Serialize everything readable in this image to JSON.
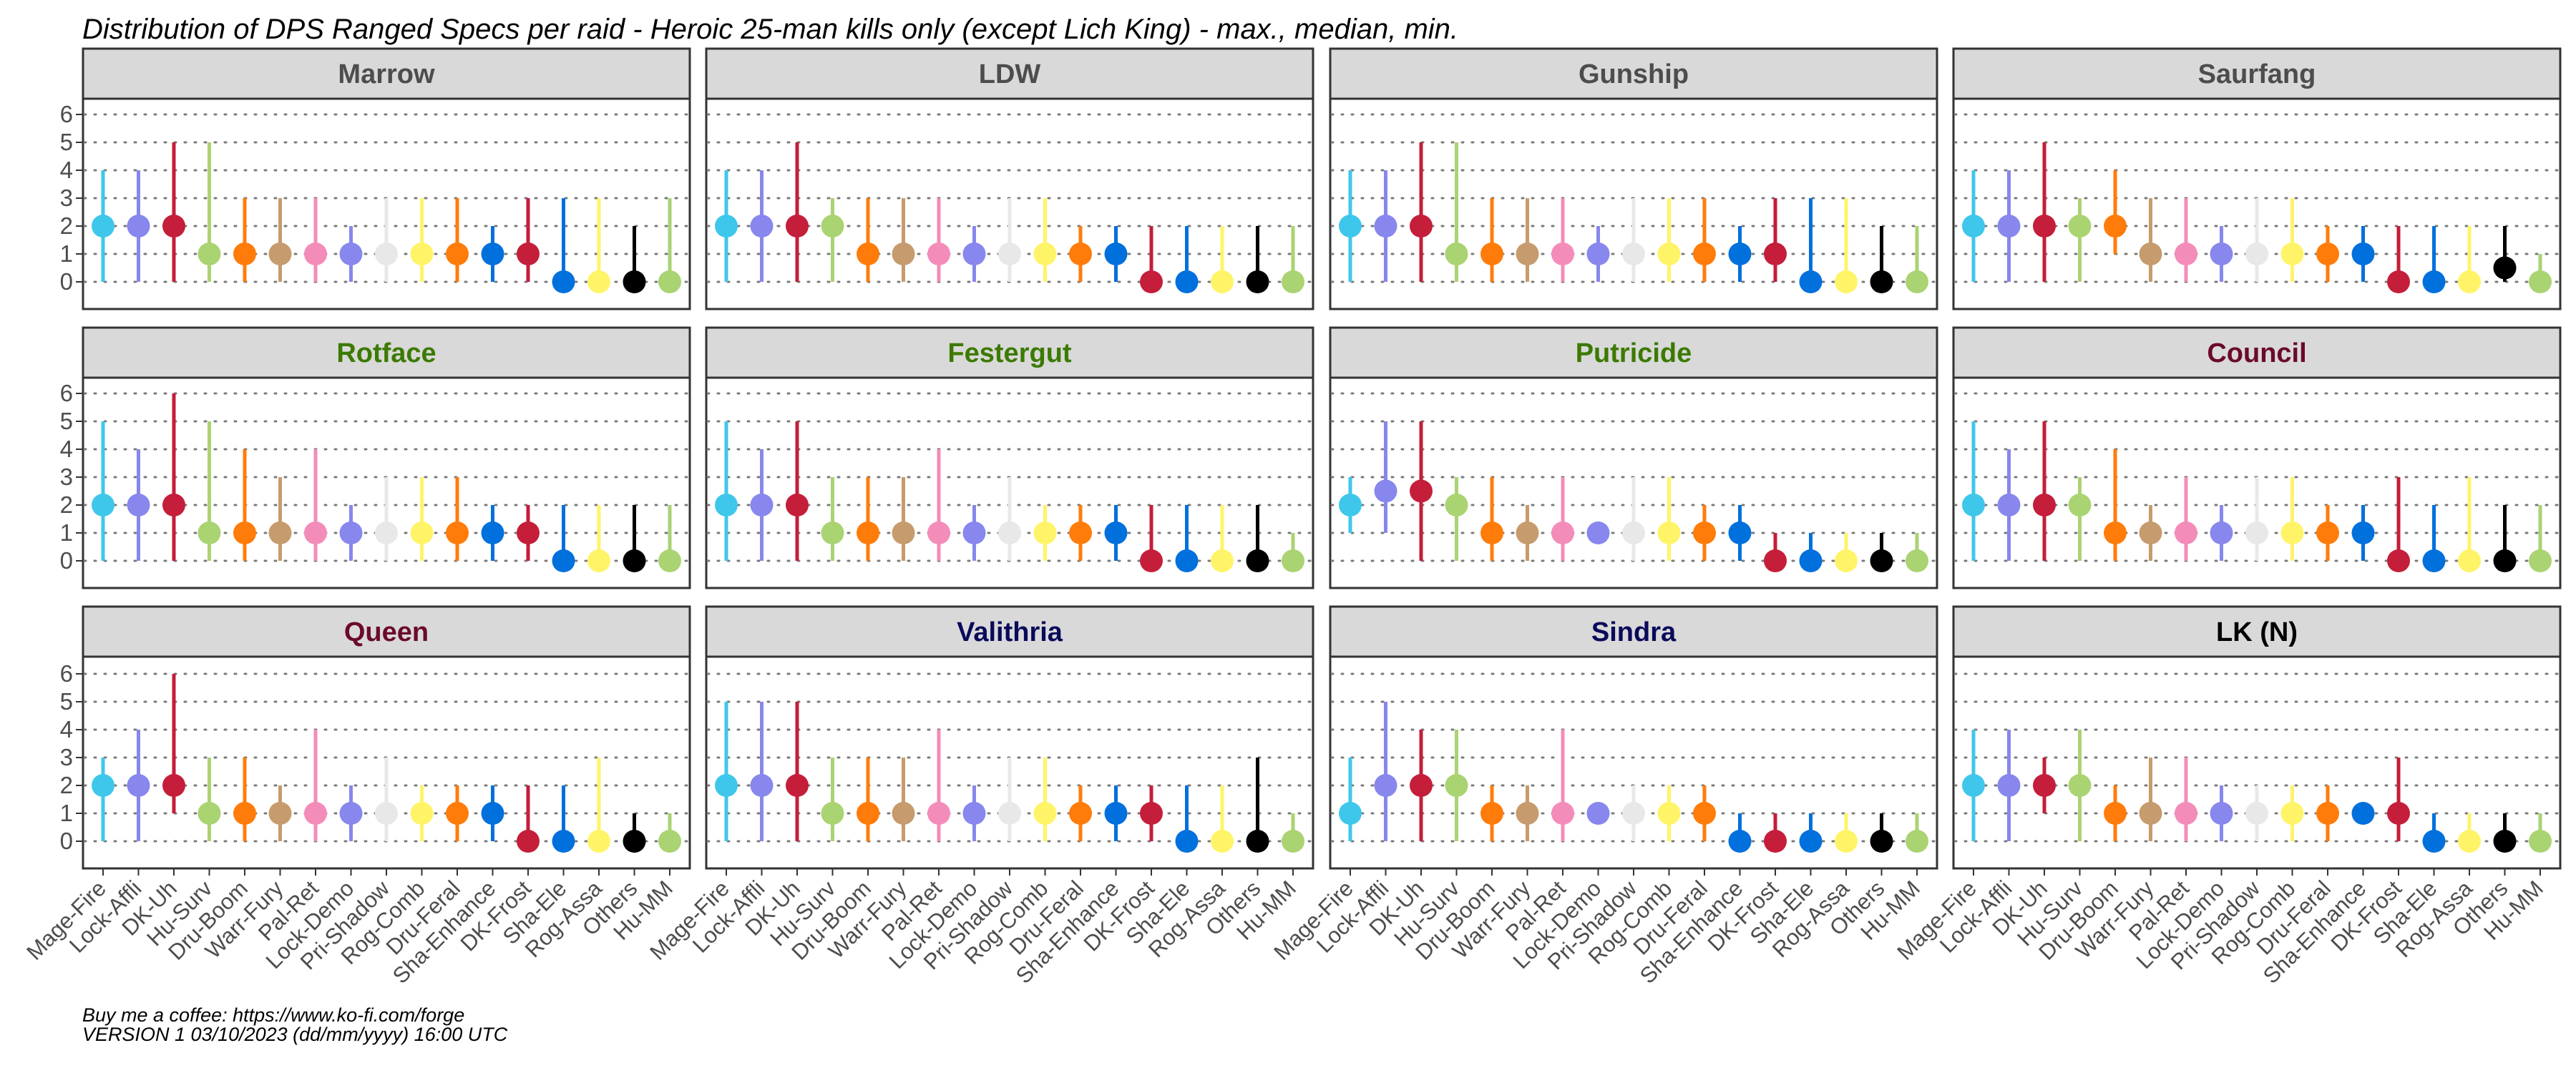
{
  "chart_data": {
    "type": "pointrange",
    "title": "Distribution of DPS Ranged Specs per raid - Heroic 25-man kills only (except Lich King) - max., median, min.",
    "footer": [
      "Buy me a coffee: https://www.ko-fi.com/forge",
      "VERSION 1 03/10/2023 (dd/mm/yyyy) 16:00 UTC"
    ],
    "ylim": [
      0,
      6
    ],
    "yticks": [
      0,
      1,
      2,
      3,
      4,
      5,
      6
    ],
    "grid": true,
    "categories": [
      "Mage-Fire",
      "Lock-Affli",
      "DK-Uh",
      "Hu-Surv",
      "Dru-Boom",
      "Warr-Fury",
      "Pal-Ret",
      "Lock-Demo",
      "Pri-Shadow",
      "Rog-Comb",
      "Dru-Feral",
      "Sha-Enhance",
      "DK-Frost",
      "Sha-Ele",
      "Rog-Assa",
      "Others",
      "Hu-MM"
    ],
    "colors": [
      "#3fc7eb",
      "#8787ed",
      "#c41e3a",
      "#aad372",
      "#ff7c0a",
      "#c69b6d",
      "#f48cba",
      "#8787ed",
      "#e8e8e8",
      "#fff468",
      "#ff7c0a",
      "#0070dd",
      "#c41e3a",
      "#0070dd",
      "#fff468",
      "#000000",
      "#aad372"
    ],
    "panels": [
      {
        "name": "Marrow",
        "color": "#4d4d4d",
        "max": [
          4,
          4,
          5,
          5,
          3,
          3,
          3,
          2,
          3,
          3,
          3,
          2,
          3,
          3,
          3,
          2,
          3
        ],
        "median": [
          2,
          2,
          2,
          1,
          1,
          1,
          1,
          1,
          1,
          1,
          1,
          1,
          1,
          0,
          0,
          0,
          0
        ],
        "min": [
          0,
          0,
          0,
          0,
          0,
          0,
          0,
          0,
          0,
          0,
          0,
          0,
          0,
          0,
          0,
          0,
          0
        ]
      },
      {
        "name": "LDW",
        "color": "#4d4d4d",
        "max": [
          4,
          4,
          5,
          3,
          3,
          3,
          3,
          2,
          3,
          3,
          2,
          2,
          2,
          2,
          2,
          2,
          2
        ],
        "median": [
          2,
          2,
          2,
          2,
          1,
          1,
          1,
          1,
          1,
          1,
          1,
          1,
          0,
          0,
          0,
          0,
          0
        ],
        "min": [
          0,
          0,
          0,
          0,
          0,
          0,
          0,
          0,
          0,
          0,
          0,
          0,
          0,
          0,
          0,
          0,
          0
        ]
      },
      {
        "name": "Gunship",
        "color": "#4d4d4d",
        "max": [
          4,
          4,
          5,
          5,
          3,
          3,
          3,
          2,
          3,
          3,
          3,
          2,
          3,
          3,
          3,
          2,
          2
        ],
        "median": [
          2,
          2,
          2,
          1,
          1,
          1,
          1,
          1,
          1,
          1,
          1,
          1,
          1,
          0,
          0,
          0,
          0
        ],
        "min": [
          0,
          0,
          0,
          0,
          0,
          0,
          0,
          0,
          0,
          0,
          0,
          0,
          0,
          0,
          0,
          0,
          0
        ]
      },
      {
        "name": "Saurfang",
        "color": "#4d4d4d",
        "max": [
          4,
          4,
          5,
          3,
          4,
          3,
          3,
          2,
          3,
          3,
          2,
          2,
          2,
          2,
          2,
          2,
          1
        ],
        "median": [
          2,
          2,
          2,
          2,
          2,
          1,
          1,
          1,
          1,
          1,
          1,
          1,
          0,
          0,
          0,
          0.5,
          0
        ],
        "min": [
          0,
          0,
          0,
          0,
          1,
          0,
          0,
          0,
          0,
          0,
          0,
          0,
          0,
          0,
          0,
          0,
          0
        ]
      },
      {
        "name": "Rotface",
        "color": "#3c7a00",
        "max": [
          5,
          4,
          6,
          5,
          4,
          3,
          4,
          2,
          3,
          3,
          3,
          2,
          2,
          2,
          2,
          2,
          2
        ],
        "median": [
          2,
          2,
          2,
          1,
          1,
          1,
          1,
          1,
          1,
          1,
          1,
          1,
          1,
          0,
          0,
          0,
          0
        ],
        "min": [
          0,
          0,
          0,
          0,
          0,
          0,
          0,
          0,
          0,
          0,
          0,
          0,
          0,
          0,
          0,
          0,
          0
        ]
      },
      {
        "name": "Festergut",
        "color": "#3c7a00",
        "max": [
          5,
          4,
          5,
          3,
          3,
          3,
          4,
          2,
          3,
          2,
          2,
          2,
          2,
          2,
          2,
          2,
          1
        ],
        "median": [
          2,
          2,
          2,
          1,
          1,
          1,
          1,
          1,
          1,
          1,
          1,
          1,
          0,
          0,
          0,
          0,
          0
        ],
        "min": [
          0,
          0,
          0,
          0,
          0,
          0,
          0,
          0,
          0,
          0,
          0,
          0,
          0,
          0,
          0,
          0,
          0
        ]
      },
      {
        "name": "Putricide",
        "color": "#3c7a00",
        "max": [
          3,
          5,
          5,
          3,
          3,
          2,
          3,
          1,
          3,
          3,
          2,
          2,
          1,
          1,
          1,
          1,
          1
        ],
        "median": [
          2,
          2.5,
          2.5,
          2,
          1,
          1,
          1,
          1,
          1,
          1,
          1,
          1,
          0,
          0,
          0,
          0,
          0
        ],
        "min": [
          1,
          1,
          0,
          0,
          0,
          0,
          0,
          1,
          0,
          0,
          0,
          0,
          0,
          0,
          0,
          0,
          0
        ]
      },
      {
        "name": "Council",
        "color": "#6b0a2a",
        "max": [
          5,
          4,
          5,
          3,
          4,
          2,
          3,
          2,
          3,
          3,
          2,
          2,
          3,
          2,
          3,
          2,
          2
        ],
        "median": [
          2,
          2,
          2,
          2,
          1,
          1,
          1,
          1,
          1,
          1,
          1,
          1,
          0,
          0,
          0,
          0,
          0
        ],
        "min": [
          0,
          0,
          0,
          0,
          0,
          0,
          0,
          0,
          0,
          0,
          0,
          0,
          0,
          0,
          0,
          0,
          0
        ]
      },
      {
        "name": "Queen",
        "color": "#6b0a2a",
        "max": [
          3,
          4,
          6,
          3,
          3,
          2,
          4,
          2,
          3,
          2,
          2,
          2,
          2,
          2,
          3,
          1,
          1
        ],
        "median": [
          2,
          2,
          2,
          1,
          1,
          1,
          1,
          1,
          1,
          1,
          1,
          1,
          0,
          0,
          0,
          0,
          0
        ],
        "min": [
          0,
          0,
          1,
          0,
          0,
          0,
          0,
          0,
          0,
          0,
          0,
          0,
          0,
          0,
          0,
          0,
          0
        ]
      },
      {
        "name": "Valithria",
        "color": "#0a0a5a",
        "max": [
          5,
          5,
          5,
          3,
          3,
          3,
          4,
          2,
          3,
          3,
          2,
          2,
          2,
          2,
          2,
          3,
          1
        ],
        "median": [
          2,
          2,
          2,
          1,
          1,
          1,
          1,
          1,
          1,
          1,
          1,
          1,
          1,
          0,
          0,
          0,
          0
        ],
        "min": [
          0,
          0,
          0,
          0,
          0,
          0,
          0,
          0,
          0,
          0,
          0,
          0,
          0,
          0,
          0,
          0,
          0
        ]
      },
      {
        "name": "Sindra",
        "color": "#0a0a5a",
        "max": [
          3,
          5,
          4,
          4,
          2,
          2,
          4,
          1,
          2,
          2,
          2,
          1,
          1,
          1,
          1,
          1,
          1
        ],
        "median": [
          1,
          2,
          2,
          2,
          1,
          1,
          1,
          1,
          1,
          1,
          1,
          0,
          0,
          0,
          0,
          0,
          0
        ],
        "min": [
          0,
          0,
          0,
          0,
          0,
          0,
          0,
          1,
          0,
          0,
          0,
          0,
          0,
          0,
          0,
          0,
          0
        ]
      },
      {
        "name": "LK (N)",
        "color": "#000000",
        "max": [
          4,
          4,
          3,
          4,
          2,
          3,
          3,
          2,
          2,
          2,
          2,
          1,
          3,
          1,
          1,
          1,
          1
        ],
        "median": [
          2,
          2,
          2,
          2,
          1,
          1,
          1,
          1,
          1,
          1,
          1,
          1,
          1,
          0,
          0,
          0,
          0
        ],
        "min": [
          0,
          0,
          1,
          0,
          0,
          0,
          0,
          0,
          0,
          0,
          0,
          1,
          0,
          0,
          0,
          0,
          0
        ]
      }
    ]
  }
}
